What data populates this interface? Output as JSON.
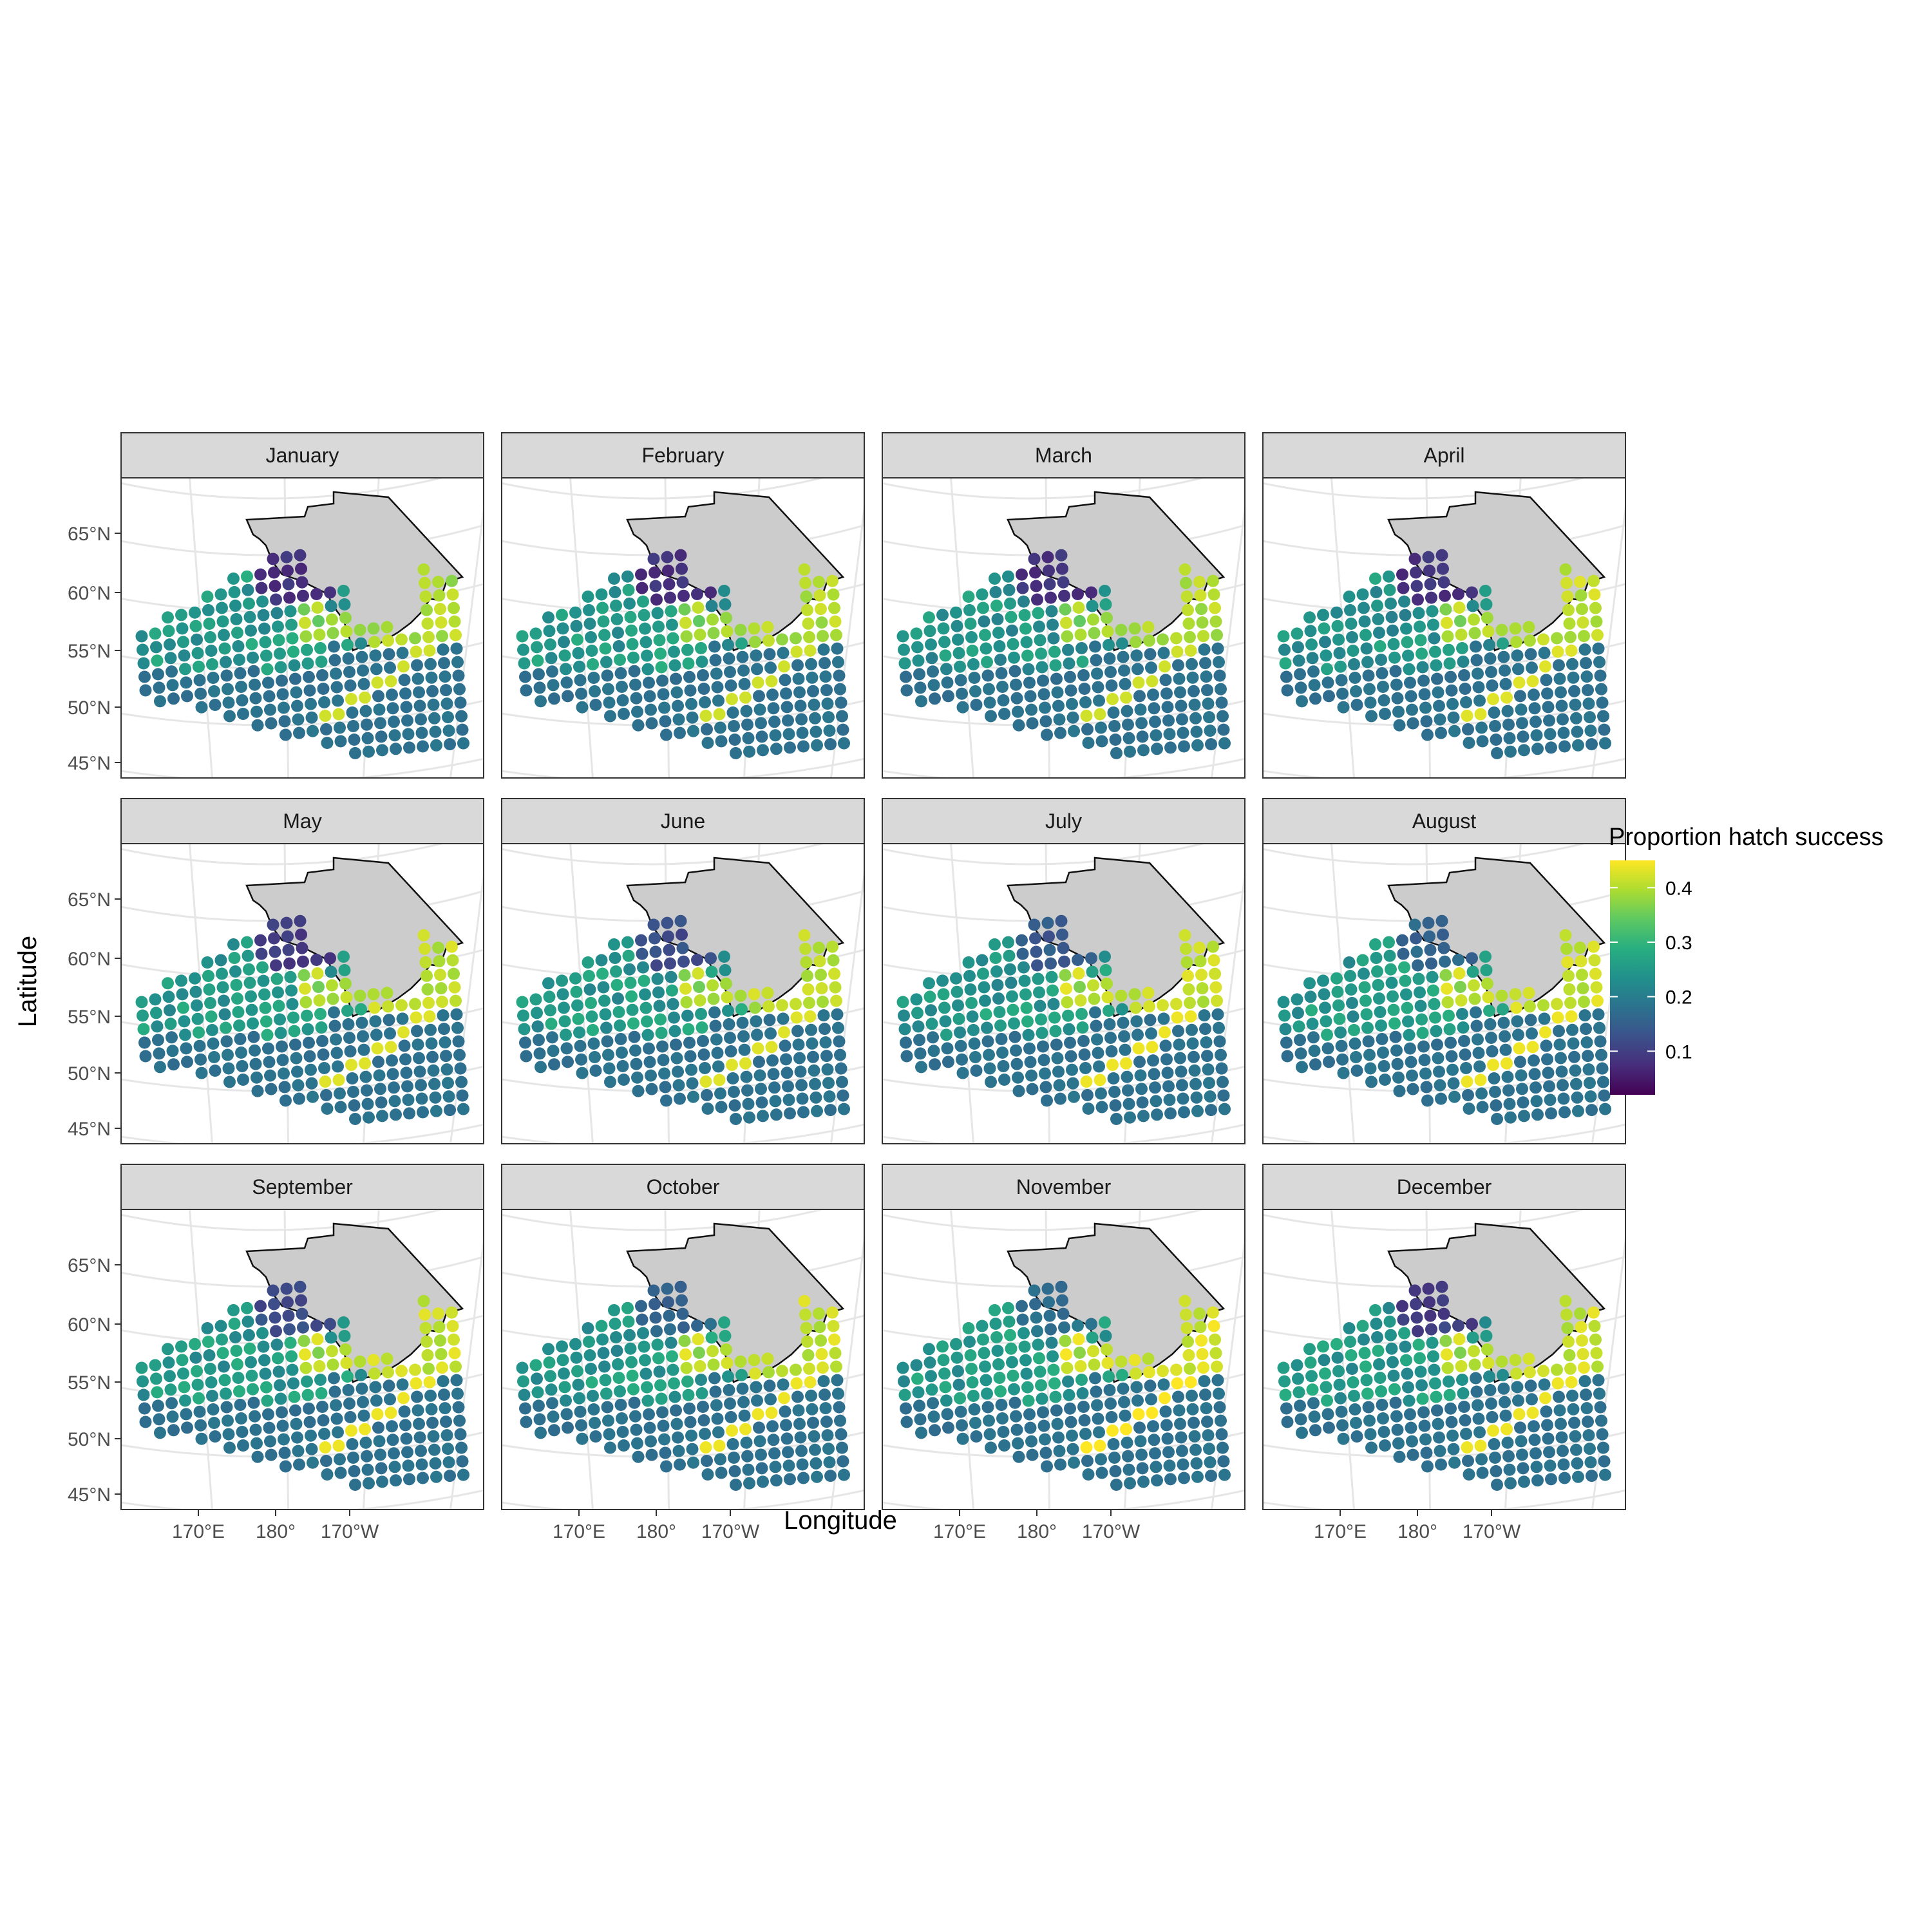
{
  "chart_data": {
    "type": "scatter",
    "subtype": "faceted map of point grid",
    "facet_variable": "month",
    "facets": [
      "January",
      "February",
      "March",
      "April",
      "May",
      "June",
      "July",
      "August",
      "September",
      "October",
      "November",
      "December"
    ],
    "xlabel": "Longitude",
    "ylabel": "Latitude",
    "x_ticks": [
      "170°E",
      "180°",
      "170°W"
    ],
    "y_ticks": [
      "65°N",
      "60°N",
      "55°N",
      "50°N",
      "45°N"
    ],
    "grid": true,
    "legend": {
      "title": "Proportion hatch success",
      "type": "continuous colorbar",
      "palette": "viridis",
      "colors": [
        "#440154",
        "#472d7b",
        "#3b528b",
        "#2c728e",
        "#21918c",
        "#28ae80",
        "#5ec962",
        "#addc30",
        "#fde725"
      ],
      "range": [
        0.02,
        0.45
      ],
      "ticks": [
        "0.1",
        "0.2",
        "0.3",
        "0.4"
      ],
      "tick_values": [
        0.1,
        0.2,
        0.3,
        0.4
      ],
      "placement": "right"
    },
    "series": [
      {
        "month": "January",
        "high_coastal_shelf": 0.42,
        "inner_bering_north": 0.06,
        "central_shelf": 0.25,
        "outer_ocean": 0.17
      },
      {
        "month": "February",
        "high_coastal_shelf": 0.42,
        "inner_bering_north": 0.06,
        "central_shelf": 0.25,
        "outer_ocean": 0.17
      },
      {
        "month": "March",
        "high_coastal_shelf": 0.42,
        "inner_bering_north": 0.06,
        "central_shelf": 0.24,
        "outer_ocean": 0.17
      },
      {
        "month": "April",
        "high_coastal_shelf": 0.43,
        "inner_bering_north": 0.06,
        "central_shelf": 0.24,
        "outer_ocean": 0.17
      },
      {
        "month": "May",
        "high_coastal_shelf": 0.43,
        "inner_bering_north": 0.07,
        "central_shelf": 0.25,
        "outer_ocean": 0.17
      },
      {
        "month": "June",
        "high_coastal_shelf": 0.43,
        "inner_bering_north": 0.1,
        "central_shelf": 0.25,
        "outer_ocean": 0.17
      },
      {
        "month": "July",
        "high_coastal_shelf": 0.44,
        "inner_bering_north": 0.12,
        "central_shelf": 0.25,
        "outer_ocean": 0.17
      },
      {
        "month": "August",
        "high_coastal_shelf": 0.44,
        "inner_bering_north": 0.14,
        "central_shelf": 0.25,
        "outer_ocean": 0.17
      },
      {
        "month": "September",
        "high_coastal_shelf": 0.44,
        "inner_bering_north": 0.1,
        "central_shelf": 0.25,
        "outer_ocean": 0.17
      },
      {
        "month": "October",
        "high_coastal_shelf": 0.44,
        "inner_bering_north": 0.14,
        "central_shelf": 0.25,
        "outer_ocean": 0.17
      },
      {
        "month": "November",
        "high_coastal_shelf": 0.45,
        "inner_bering_north": 0.16,
        "central_shelf": 0.25,
        "outer_ocean": 0.17
      },
      {
        "month": "December",
        "high_coastal_shelf": 0.44,
        "inner_bering_north": 0.08,
        "central_shelf": 0.25,
        "outer_ocean": 0.17
      }
    ]
  }
}
